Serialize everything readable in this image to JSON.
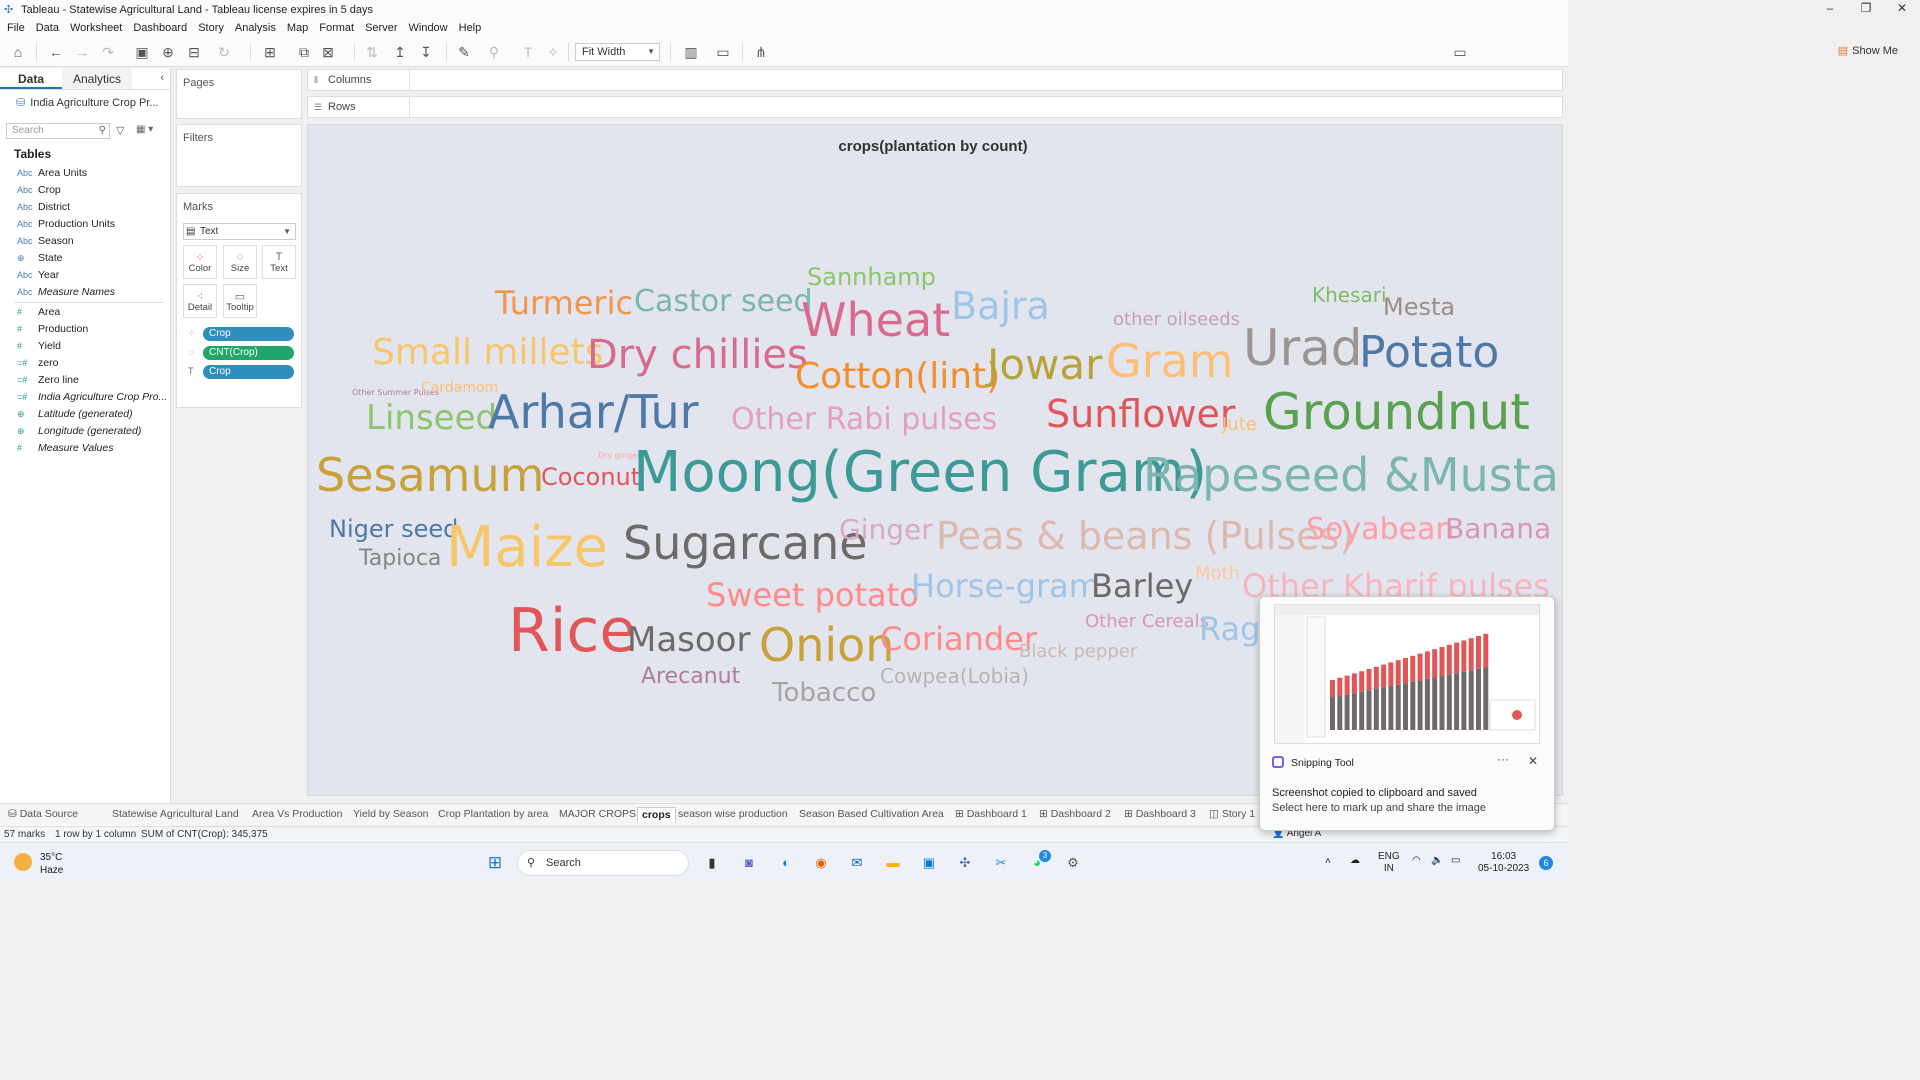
{
  "window": {
    "title": "Tableau - Statewise Agricultural Land - Tableau license expires in 5 days",
    "controls": [
      "–",
      "❐",
      "✕"
    ]
  },
  "menu": [
    "File",
    "Data",
    "Worksheet",
    "Dashboard",
    "Story",
    "Analysis",
    "Map",
    "Format",
    "Server",
    "Window",
    "Help"
  ],
  "toolbar": {
    "fit": "Fit Width",
    "show_me": "Show Me"
  },
  "data_pane": {
    "tab_data": "Data",
    "tab_analytics": "Analytics",
    "source": "India Agriculture Crop Pr...",
    "search_placeholder": "Search",
    "tables_heading": "Tables",
    "dimensions": [
      {
        "type": "Abc",
        "name": "Area Units"
      },
      {
        "type": "Abc",
        "name": "Crop"
      },
      {
        "type": "Abc",
        "name": "District"
      },
      {
        "type": "Abc",
        "name": "Production Units"
      },
      {
        "type": "Abc",
        "name": "Season"
      },
      {
        "type": "⊕",
        "name": "State"
      },
      {
        "type": "Abc",
        "name": "Year"
      },
      {
        "type": "Abc",
        "name": "Measure Names"
      }
    ],
    "measures": [
      {
        "type": "#",
        "name": "Area"
      },
      {
        "type": "#",
        "name": "Production"
      },
      {
        "type": "#",
        "name": "Yield"
      },
      {
        "type": "=#",
        "name": "zero"
      },
      {
        "type": "=#",
        "name": "Zero line"
      },
      {
        "type": "=#",
        "name": "India Agriculture Crop Pro..."
      },
      {
        "type": "⊕",
        "name": "Latitude (generated)"
      },
      {
        "type": "⊕",
        "name": "Longitude (generated)"
      },
      {
        "type": "#",
        "name": "Measure Values"
      }
    ]
  },
  "panes": {
    "pages": "Pages",
    "filters": "Filters",
    "marks": "Marks",
    "mark_type": "Text",
    "buttons": [
      "Color",
      "Size",
      "Text",
      "Detail",
      "Tooltip"
    ],
    "pills": [
      "Crop",
      "CNT(Crop)",
      "Crop"
    ]
  },
  "shelves": {
    "columns": "Columns",
    "rows": "Rows"
  },
  "sheet": {
    "title": "crops(plantation by count)",
    "words": [
      {
        "t": "Sannhamp",
        "c": "#8cc56b"
      },
      {
        "t": "Turmeric",
        "c": "#f0954a"
      },
      {
        "t": "Castor seed",
        "c": "#7ab5b0"
      },
      {
        "t": "Wheat",
        "c": "#d96a8f"
      },
      {
        "t": "Bajra",
        "c": "#9ec5e8"
      },
      {
        "t": "Khesari",
        "c": "#7fba6a"
      },
      {
        "t": "Mesta",
        "c": "#9d8d85"
      },
      {
        "t": "other oilseeds",
        "c": "#c79bbf"
      },
      {
        "t": "Urad",
        "c": "#9b9494"
      },
      {
        "t": "Potato",
        "c": "#4e79a7"
      },
      {
        "t": "Small millets",
        "c": "#f5c66a"
      },
      {
        "t": "Dry chillies",
        "c": "#d96a8f"
      },
      {
        "t": "Cotton(lint)",
        "c": "#f28e2b"
      },
      {
        "t": "Jowar",
        "c": "#b9a23a"
      },
      {
        "t": "Gram",
        "c": "#fcbf75"
      },
      {
        "t": "Other Summer Pulses",
        "c": "#b07aa1"
      },
      {
        "t": "Cardamom",
        "c": "#fcbf75"
      },
      {
        "t": "Linseed",
        "c": "#8cc56b"
      },
      {
        "t": "Arhar/Tur",
        "c": "#4e79a7"
      },
      {
        "t": "Other Rabi pulses",
        "c": "#e3a0bd"
      },
      {
        "t": "Sunflower",
        "c": "#e15759"
      },
      {
        "t": "Jute",
        "c": "#fcbf75"
      },
      {
        "t": "Groundnut",
        "c": "#59a14f"
      },
      {
        "t": "Dry ginger",
        "c": "#ff9da7"
      },
      {
        "t": "Sesamum",
        "c": "#c9a13a"
      },
      {
        "t": "Coconut",
        "c": "#e15759"
      },
      {
        "t": "Moong(Green Gram)",
        "c": "#3d9a97"
      },
      {
        "t": "Rapeseed &Mustard",
        "c": "#7ab5b0"
      },
      {
        "t": "Niger seed",
        "c": "#4e79a7"
      },
      {
        "t": "Tapioca",
        "c": "#8a8484"
      },
      {
        "t": "Maize",
        "c": "#f5c66a"
      },
      {
        "t": "Sugarcane",
        "c": "#6e6a6a"
      },
      {
        "t": "Ginger",
        "c": "#d7a9c4"
      },
      {
        "t": "Peas & beans (Pulses)",
        "c": "#dcb9ae"
      },
      {
        "t": "Soyabean",
        "c": "#ff9da7"
      },
      {
        "t": "Banana",
        "c": "#d796b3"
      },
      {
        "t": "Sweet potato",
        "c": "#ff8a8a"
      },
      {
        "t": "Horse-gram",
        "c": "#9ec5e8"
      },
      {
        "t": "Barley",
        "c": "#6e6a6a"
      },
      {
        "t": "Moth",
        "c": "#f9c89a"
      },
      {
        "t": "Other Kharif pulses",
        "c": "#f6b5bd"
      },
      {
        "t": "Rice",
        "c": "#e15759"
      },
      {
        "t": "Masoor",
        "c": "#6e6a6a"
      },
      {
        "t": "Onion",
        "c": "#c9a13a"
      },
      {
        "t": "Coriander",
        "c": "#ff8a8a"
      },
      {
        "t": "Other Cereals",
        "c": "#d796b3"
      },
      {
        "t": "Ragi",
        "c": "#9ec5e8"
      },
      {
        "t": "Black pepper",
        "c": "#c9b8b4"
      },
      {
        "t": "Arecanut",
        "c": "#b07aa1"
      },
      {
        "t": "Tobacco",
        "c": "#a8a2a2"
      },
      {
        "t": "Cowpea(Lobia)",
        "c": "#b8b2b2"
      }
    ]
  },
  "sheet_tabs": [
    "Data Source",
    "Statewise Agricultural Land",
    "Area Vs Production",
    "Yield by Season",
    "Crop Plantation by area",
    "MAJOR CROPS",
    "crops",
    "season wise production",
    "Season Based Cultivation Area",
    "Dashboard 1",
    "Dashboard 2",
    "Dashboard 3",
    "Story 1"
  ],
  "status": {
    "marks": "57 marks",
    "rows": "1 row by 1 column",
    "sum": "SUM of CNT(Crop): 345,375",
    "user": "Angel A"
  },
  "notification": {
    "app": "Snipping Tool",
    "line1": "Screenshot copied to clipboard and saved",
    "line2": "Select here to mark up and share the image",
    "more": "···",
    "close": "✕"
  },
  "taskbar": {
    "temp": "35°C",
    "weather": "Haze",
    "search": "Search",
    "lang1": "ENG",
    "lang2": "IN",
    "time": "16:03",
    "date": "05-10-2023",
    "badge": "6",
    "whatsapp_badge": "3"
  }
}
